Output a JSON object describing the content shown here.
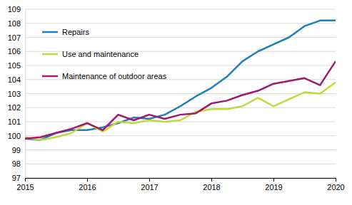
{
  "chart_data": {
    "type": "line",
    "x": [
      2015,
      2015.25,
      2015.5,
      2015.75,
      2016,
      2016.25,
      2016.5,
      2016.75,
      2017,
      2017.25,
      2017.5,
      2017.75,
      2018,
      2018.25,
      2018.5,
      2018.75,
      2019,
      2019.25,
      2019.5,
      2019.75,
      2020
    ],
    "series": [
      {
        "name": "Repairs",
        "color": "#1f7fb8",
        "values": [
          99.8,
          99.7,
          100.2,
          100.4,
          100.4,
          100.6,
          100.9,
          101.3,
          101.2,
          101.5,
          102.1,
          102.8,
          103.4,
          104.2,
          105.3,
          106.0,
          106.5,
          107.0,
          107.8,
          108.2,
          108.2
        ]
      },
      {
        "name": "Use and maintenance",
        "color": "#c2d83e",
        "values": [
          99.9,
          99.7,
          99.9,
          100.2,
          100.9,
          100.3,
          101.0,
          100.9,
          101.1,
          101.0,
          101.1,
          101.7,
          101.9,
          101.9,
          102.1,
          102.7,
          102.1,
          102.6,
          103.1,
          103.0,
          103.8
        ]
      },
      {
        "name": "Maintenance of outdoor areas",
        "color": "#a0196e",
        "values": [
          99.8,
          99.9,
          100.2,
          100.5,
          100.9,
          100.4,
          101.5,
          101.1,
          101.5,
          101.2,
          101.5,
          101.6,
          102.3,
          102.5,
          102.9,
          103.2,
          103.7,
          103.9,
          104.1,
          103.6,
          105.3
        ]
      }
    ],
    "xlim": [
      2015,
      2020
    ],
    "xticks": [
      2015,
      2016,
      2017,
      2018,
      2019,
      2020
    ],
    "ylim": [
      97,
      109
    ],
    "yticks": [
      97,
      98,
      99,
      100,
      101,
      102,
      103,
      104,
      105,
      106,
      107,
      108,
      109
    ],
    "grid": true,
    "legend": "upper left"
  }
}
